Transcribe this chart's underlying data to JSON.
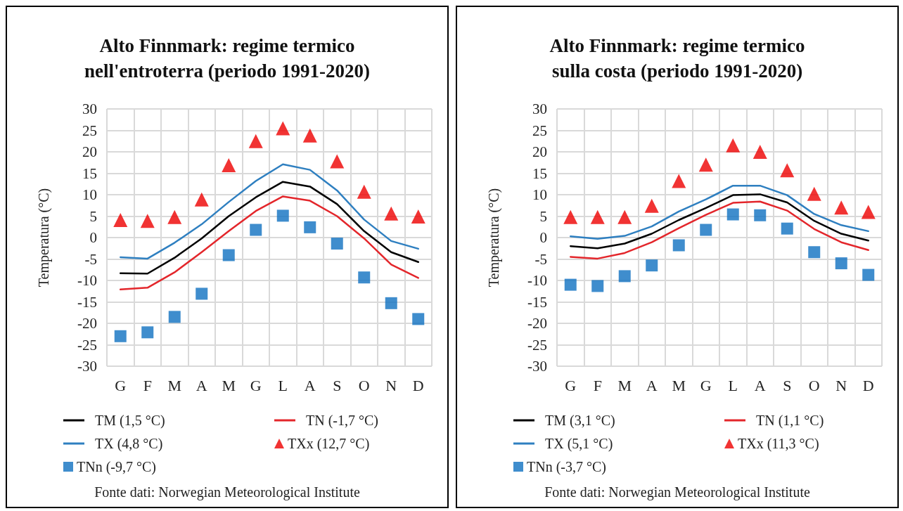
{
  "chart_data": [
    {
      "type": "line",
      "title": "Alto Finnmark: regime termico\nnell'entroterra (periodo 1991-2020)",
      "ylabel": "Temperatura (°C)",
      "categories": [
        "G",
        "F",
        "M",
        "A",
        "M",
        "G",
        "L",
        "A",
        "S",
        "O",
        "N",
        "D"
      ],
      "ylim": [
        -30,
        30
      ],
      "yticks": [
        -30,
        -25,
        -20,
        -15,
        -10,
        -5,
        0,
        5,
        10,
        15,
        20,
        25,
        30
      ],
      "grid": true,
      "legend": "bottom",
      "line_style": "solid",
      "annotations": [
        "Fonte dati: Norwegian Meteorological Institute"
      ],
      "series": [
        {
          "name": "TM (1,5 °C)",
          "marker": "none",
          "color": "#000000",
          "values": [
            -8.3,
            -8.4,
            -4.7,
            -0.2,
            5.0,
            9.4,
            13.0,
            11.9,
            7.8,
            1.5,
            -3.4,
            -5.7
          ]
        },
        {
          "name": "TN (-1,7 °C)",
          "marker": "none",
          "color": "#e3262b",
          "values": [
            -12.1,
            -11.7,
            -8.1,
            -3.4,
            1.5,
            6.2,
            9.6,
            8.6,
            5.0,
            -0.2,
            -6.3,
            -9.4
          ]
        },
        {
          "name": "TX (4,8 °C)",
          "marker": "none",
          "color": "#2e7fc0",
          "values": [
            -4.6,
            -4.9,
            -1.2,
            3.1,
            8.3,
            13.2,
            17.1,
            15.8,
            11.0,
            4.2,
            -0.8,
            -2.6
          ]
        },
        {
          "name": "TXx (12,7 °C)",
          "type": "scatter",
          "marker": "triangle",
          "color": "#ee0000",
          "values": [
            4.1,
            3.9,
            4.8,
            8.9,
            16.9,
            22.5,
            25.5,
            23.8,
            17.8,
            10.7,
            5.6,
            4.9
          ]
        },
        {
          "name": "TNn (-9,7 °C)",
          "type": "scatter",
          "marker": "square",
          "color": "#0f70c0",
          "values": [
            -23.0,
            -22.1,
            -18.5,
            -13.1,
            -4.1,
            1.8,
            5.1,
            2.4,
            -1.4,
            -9.3,
            -15.3,
            -19.0
          ]
        }
      ]
    },
    {
      "type": "line",
      "title": "Alto Finnmark: regime termico\nsulla costa (periodo 1991-2020)",
      "ylabel": "Temperatura (°C)",
      "categories": [
        "G",
        "F",
        "M",
        "A",
        "M",
        "G",
        "L",
        "A",
        "S",
        "O",
        "N",
        "D"
      ],
      "ylim": [
        -30,
        30
      ],
      "yticks": [
        -30,
        -25,
        -20,
        -15,
        -10,
        -5,
        0,
        5,
        10,
        15,
        20,
        25,
        30
      ],
      "grid": true,
      "legend": "bottom",
      "line_style": "solid",
      "annotations": [
        "Fonte dati: Norwegian Meteorological Institute"
      ],
      "series": [
        {
          "name": "TM (3,1 °C)",
          "marker": "none",
          "color": "#000000",
          "values": [
            -2.0,
            -2.5,
            -1.4,
            0.9,
            4.1,
            6.9,
            9.9,
            10.1,
            8.2,
            3.9,
            0.9,
            -0.7
          ]
        },
        {
          "name": "TN (1,1 °C)",
          "marker": "none",
          "color": "#e3262b",
          "values": [
            -4.5,
            -4.9,
            -3.6,
            -1.1,
            2.2,
            5.3,
            8.1,
            8.4,
            6.3,
            2.0,
            -1.1,
            -2.9
          ]
        },
        {
          "name": "TX (5,1 °C)",
          "marker": "none",
          "color": "#2e7fc0",
          "values": [
            0.3,
            -0.3,
            0.4,
            2.6,
            6.1,
            8.9,
            12.1,
            12.1,
            9.9,
            5.5,
            2.9,
            1.5
          ]
        },
        {
          "name": "TXx (11,3 °C)",
          "type": "scatter",
          "marker": "triangle",
          "color": "#ee0000",
          "values": [
            4.8,
            4.8,
            4.8,
            7.4,
            13.2,
            17.0,
            21.5,
            20.0,
            15.7,
            10.2,
            7.0,
            6.0
          ]
        },
        {
          "name": "TNn (-3,7 °C)",
          "type": "scatter",
          "marker": "square",
          "color": "#0f70c0",
          "values": [
            -11.0,
            -11.3,
            -9.0,
            -6.5,
            -1.8,
            1.8,
            5.4,
            5.2,
            2.1,
            -3.4,
            -6.0,
            -8.7
          ]
        }
      ]
    }
  ]
}
